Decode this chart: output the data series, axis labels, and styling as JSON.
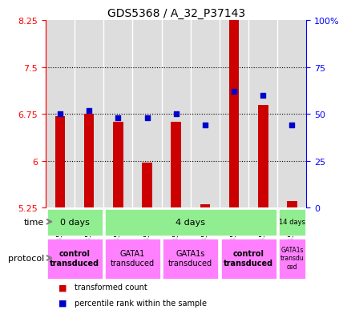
{
  "title": "GDS5368 / A_32_P37143",
  "samples": [
    "GSM1359247",
    "GSM1359248",
    "GSM1359240",
    "GSM1359241",
    "GSM1359242",
    "GSM1359243",
    "GSM1359245",
    "GSM1359246",
    "GSM1359244"
  ],
  "red_values": [
    6.72,
    6.75,
    6.63,
    5.97,
    6.63,
    5.3,
    8.6,
    6.9,
    5.35
  ],
  "blue_pct": [
    50,
    52,
    48,
    48,
    50,
    44,
    62,
    60,
    44
  ],
  "ylim_left": [
    5.25,
    8.25
  ],
  "ylim_right": [
    0,
    100
  ],
  "yticks_left": [
    5.25,
    6.0,
    6.75,
    7.5,
    8.25
  ],
  "yticks_right": [
    0,
    25,
    50,
    75,
    100
  ],
  "ytick_labels_left": [
    "5.25",
    "6",
    "6.75",
    "7.5",
    "8.25"
  ],
  "ytick_labels_right": [
    "0",
    "25",
    "50",
    "75",
    "100%"
  ],
  "dotted_lines": [
    6.0,
    6.75,
    7.5
  ],
  "bar_color": "#CC0000",
  "dot_color": "#0000CC",
  "bg_color": "#DDDDDD",
  "plot_bg": "#FFFFFF",
  "bar_bottom": 5.25,
  "time_defs": [
    {
      "start": 0,
      "end": 2,
      "label": "0 days"
    },
    {
      "start": 2,
      "end": 8,
      "label": "4 days"
    },
    {
      "start": 8,
      "end": 9,
      "label": "14 days"
    }
  ],
  "prot_defs": [
    {
      "start": 0,
      "end": 2,
      "label": "control\ntransduced",
      "bold": true
    },
    {
      "start": 2,
      "end": 4,
      "label": "GATA1\ntransduced",
      "bold": false
    },
    {
      "start": 4,
      "end": 6,
      "label": "GATA1s\ntransduced",
      "bold": false
    },
    {
      "start": 6,
      "end": 8,
      "label": "control\ntransduced",
      "bold": true
    },
    {
      "start": 8,
      "end": 9,
      "label": "GATA1s\ntransdu\nced",
      "bold": false
    }
  ]
}
